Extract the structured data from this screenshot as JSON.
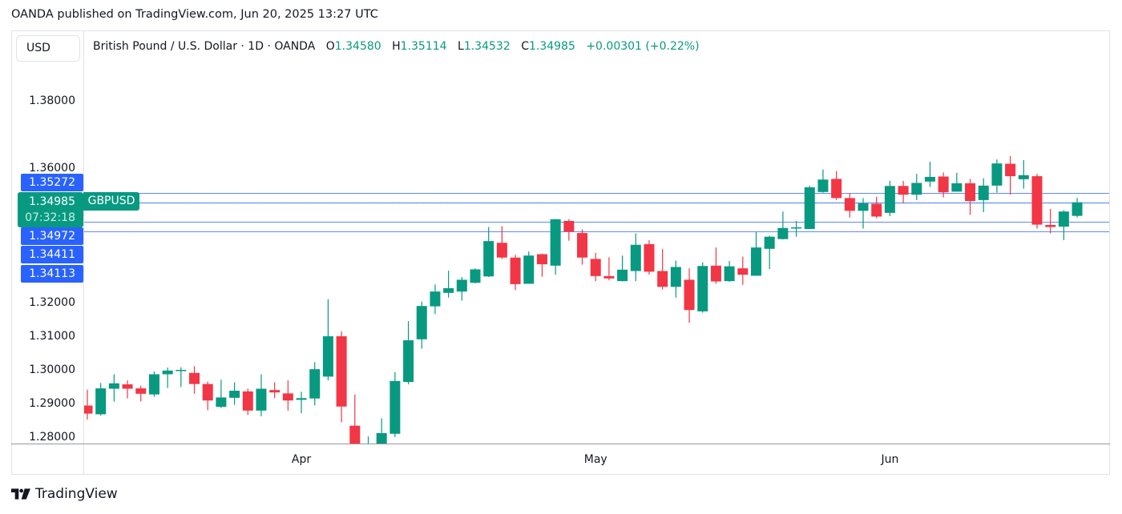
{
  "published": "OANDA published on TradingView.com, Jun 20, 2025 13:27 UTC",
  "currency_button": "USD",
  "legend": {
    "title": "British Pound / U.S. Dollar · 1D · OANDA",
    "o_label": "O",
    "o": "1.34580",
    "h_label": "H",
    "h": "1.35114",
    "l_label": "L",
    "l": "1.34532",
    "c_label": "C",
    "c": "1.34985",
    "change": "+0.00301 (+0.22%)"
  },
  "colors": {
    "up": "#089981",
    "down": "#f23645",
    "price_line": "#2962ff"
  },
  "price_labels": [
    "1.35272",
    "1.34972",
    "1.34411",
    "1.34113"
  ],
  "current": {
    "price": "1.34985",
    "countdown": "07:32:18",
    "symbol": "GBPUSD"
  },
  "logo_text": "TradingView",
  "chart_data": {
    "type": "candlestick",
    "symbol": "GBPUSD",
    "ylim": [
      1.27,
      1.395
    ],
    "grid": false,
    "y_ticks": [
      "1.38000",
      "1.36000",
      "1.32000",
      "1.31000",
      "1.30000",
      "1.29000",
      "1.28000"
    ],
    "x_ticks": [
      {
        "label": "Apr",
        "index": 16
      },
      {
        "label": "May",
        "index": 38
      },
      {
        "label": "Jun",
        "index": 60
      }
    ],
    "horizontal_lines": [
      1.35272,
      1.34985,
      1.34972,
      1.34411,
      1.34113
    ],
    "ohlc": [
      [
        1.2894,
        1.2941,
        1.2852,
        1.287
      ],
      [
        1.2868,
        1.2961,
        1.2864,
        1.2945
      ],
      [
        1.2944,
        1.2987,
        1.2906,
        1.296
      ],
      [
        1.2957,
        1.2969,
        1.2915,
        1.2944
      ],
      [
        1.2945,
        1.2953,
        1.2906,
        1.2929
      ],
      [
        1.2927,
        1.2995,
        1.292,
        1.2987
      ],
      [
        1.2987,
        1.3007,
        1.2946,
        1.2998
      ],
      [
        1.2997,
        1.3008,
        1.2949,
        1.3
      ],
      [
        1.2991,
        1.3011,
        1.2929,
        1.2958
      ],
      [
        1.2958,
        1.2965,
        1.288,
        1.2909
      ],
      [
        1.289,
        1.2971,
        1.2887,
        1.2918
      ],
      [
        1.2917,
        1.2963,
        1.2896,
        1.2938
      ],
      [
        1.2936,
        1.2944,
        1.2866,
        1.2879
      ],
      [
        1.2879,
        1.2987,
        1.2862,
        1.2944
      ],
      [
        1.294,
        1.2963,
        1.2916,
        1.2933
      ],
      [
        1.293,
        1.2969,
        1.2879,
        1.2909
      ],
      [
        1.2911,
        1.2935,
        1.2871,
        1.2916
      ],
      [
        1.2915,
        1.3023,
        1.2894,
        1.3002
      ],
      [
        1.298,
        1.321,
        1.2969,
        1.31
      ],
      [
        1.31,
        1.3114,
        1.2844,
        1.2891
      ],
      [
        1.2834,
        1.2927,
        1.271,
        1.276
      ],
      [
        1.276,
        1.2802,
        1.274,
        1.2775
      ],
      [
        1.2775,
        1.2856,
        1.2765,
        1.2812
      ],
      [
        1.281,
        1.2993,
        1.28,
        1.2967
      ],
      [
        1.2964,
        1.3145,
        1.2957,
        1.3088
      ],
      [
        1.3091,
        1.3203,
        1.3063,
        1.319
      ],
      [
        1.3189,
        1.3254,
        1.3166,
        1.3233
      ],
      [
        1.3229,
        1.3295,
        1.3215,
        1.3243
      ],
      [
        1.3233,
        1.3276,
        1.3206,
        1.3268
      ],
      [
        1.3259,
        1.3302,
        1.3257,
        1.3299
      ],
      [
        1.3278,
        1.3425,
        1.3276,
        1.3383
      ],
      [
        1.3378,
        1.3427,
        1.333,
        1.3334
      ],
      [
        1.3334,
        1.3342,
        1.3237,
        1.3255
      ],
      [
        1.3256,
        1.3352,
        1.3256,
        1.334
      ],
      [
        1.3344,
        1.3346,
        1.3277,
        1.3314
      ],
      [
        1.331,
        1.3449,
        1.3283,
        1.3448
      ],
      [
        1.3443,
        1.3448,
        1.3384,
        1.3411
      ],
      [
        1.3407,
        1.3418,
        1.3313,
        1.3334
      ],
      [
        1.333,
        1.3348,
        1.3264,
        1.3279
      ],
      [
        1.3279,
        1.3335,
        1.3267,
        1.3272
      ],
      [
        1.3264,
        1.334,
        1.3263,
        1.3298
      ],
      [
        1.3294,
        1.3406,
        1.3264,
        1.3372
      ],
      [
        1.3374,
        1.3386,
        1.3283,
        1.3292
      ],
      [
        1.3294,
        1.336,
        1.3239,
        1.3247
      ],
      [
        1.3247,
        1.3325,
        1.3215,
        1.3306
      ],
      [
        1.3268,
        1.3302,
        1.314,
        1.3178
      ],
      [
        1.3174,
        1.332,
        1.317,
        1.3309
      ],
      [
        1.331,
        1.3364,
        1.3256,
        1.3263
      ],
      [
        1.3264,
        1.3324,
        1.3262,
        1.3308
      ],
      [
        1.3302,
        1.3337,
        1.3253,
        1.3283
      ],
      [
        1.328,
        1.341,
        1.328,
        1.3364
      ],
      [
        1.336,
        1.3399,
        1.33,
        1.3396
      ],
      [
        1.3389,
        1.3471,
        1.3388,
        1.3422
      ],
      [
        1.3421,
        1.3443,
        1.3396,
        1.3424
      ],
      [
        1.3419,
        1.3548,
        1.3419,
        1.3543
      ],
      [
        1.3529,
        1.3596,
        1.3527,
        1.3566
      ],
      [
        1.3568,
        1.3591,
        1.3505,
        1.3511
      ],
      [
        1.3511,
        1.3526,
        1.3453,
        1.3473
      ],
      [
        1.3473,
        1.3511,
        1.342,
        1.3495
      ],
      [
        1.3494,
        1.3515,
        1.3451,
        1.3456
      ],
      [
        1.3467,
        1.3562,
        1.3457,
        1.3547
      ],
      [
        1.3547,
        1.3562,
        1.3495,
        1.3521
      ],
      [
        1.3521,
        1.3583,
        1.3505,
        1.3556
      ],
      [
        1.356,
        1.3619,
        1.3544,
        1.3574
      ],
      [
        1.3575,
        1.3587,
        1.3513,
        1.3528
      ],
      [
        1.353,
        1.3586,
        1.353,
        1.3555
      ],
      [
        1.3555,
        1.3568,
        1.3461,
        1.3502
      ],
      [
        1.3505,
        1.357,
        1.3469,
        1.3548
      ],
      [
        1.3548,
        1.3626,
        1.3527,
        1.3614
      ],
      [
        1.3613,
        1.3636,
        1.3521,
        1.3576
      ],
      [
        1.3567,
        1.3624,
        1.3539,
        1.3579
      ],
      [
        1.3576,
        1.3583,
        1.342,
        1.3432
      ],
      [
        1.3431,
        1.3479,
        1.3406,
        1.3425
      ],
      [
        1.3426,
        1.3475,
        1.3386,
        1.3471
      ],
      [
        1.3458,
        1.35114,
        1.34532,
        1.34985
      ]
    ]
  }
}
